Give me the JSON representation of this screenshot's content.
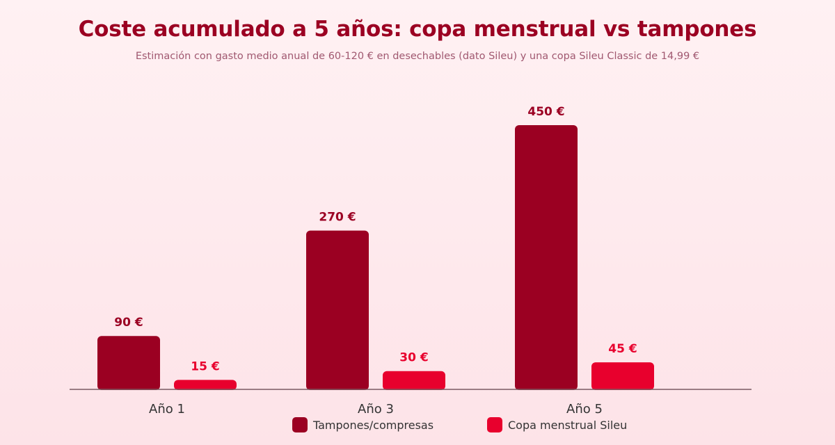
{
  "chart_data": {
    "type": "bar",
    "title": "Coste acumulado a 5 años: copa menstrual vs tampones",
    "subtitle": "Estimación con gasto medio anual de 60-120 € en desechables (dato Sileu) y una copa Sileu Classic de 14,99 €",
    "categories": [
      "Año 1",
      "Año 3",
      "Año 5"
    ],
    "series": [
      {
        "name": "Tampones/compresas",
        "values": [
          90,
          270,
          450
        ],
        "labels": [
          "90 €",
          "270 €",
          "450 €"
        ],
        "color": "#9b0022"
      },
      {
        "name": "Copa menstrual Sileu",
        "values": [
          15,
          30,
          45
        ],
        "labels": [
          "15 €",
          "30 €",
          "45 €"
        ],
        "color": "#e8002d"
      }
    ],
    "ylim": [
      0,
      450
    ],
    "grid": false,
    "legend_position": "bottom-center"
  }
}
